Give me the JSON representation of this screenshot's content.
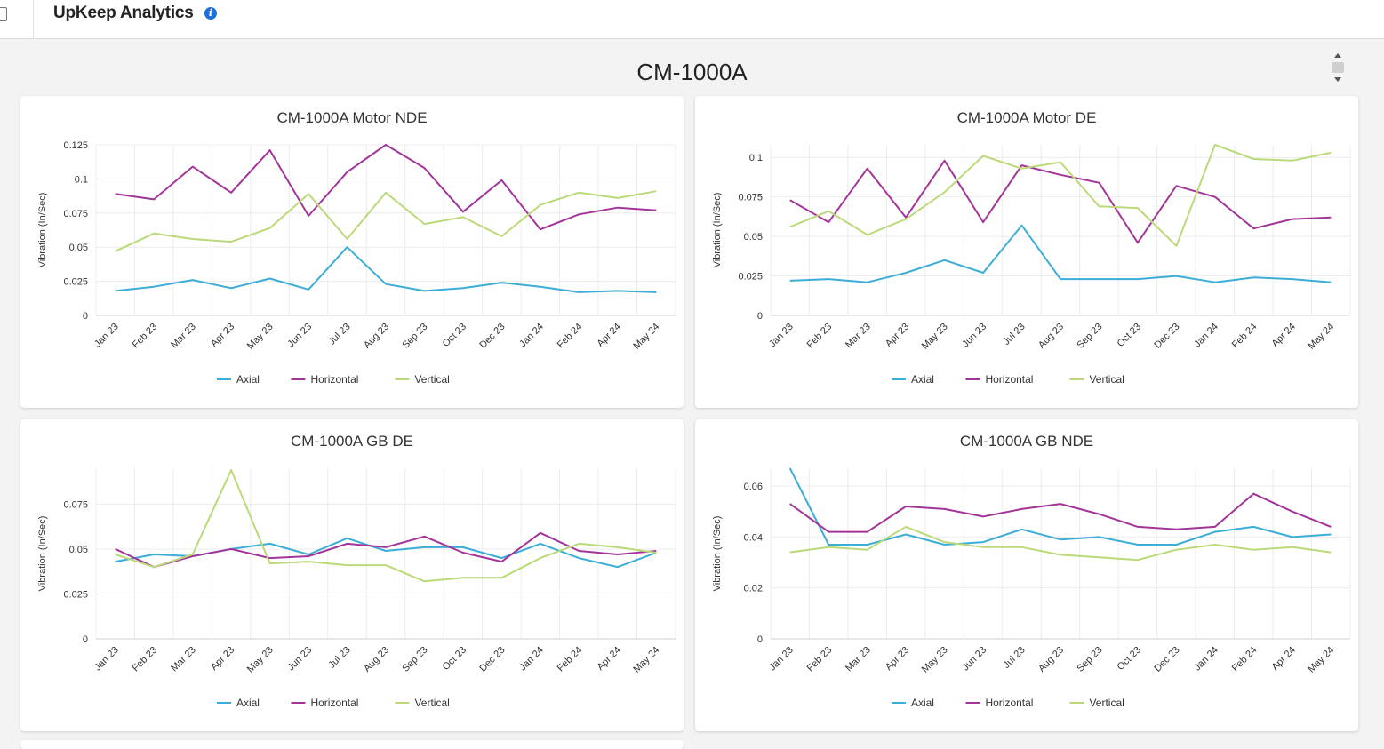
{
  "app": {
    "title": "UpKeep Analytics",
    "info_icon": "info-icon"
  },
  "dashboard": {
    "title": "CM-1000A"
  },
  "colors": {
    "Axial": "#3badd7",
    "Horizontal": "#a3359a",
    "Vertical": "#bcd97a"
  },
  "chart_data": [
    {
      "type": "line",
      "title": "CM-1000A Motor NDE",
      "xlabel": "",
      "ylabel": "Vibration (In/Sec)",
      "categories": [
        "Jan 23",
        "Feb 23",
        "Mar 23",
        "Apr 23",
        "May 23",
        "Jun 23",
        "Jul 23",
        "Aug 23",
        "Sep 23",
        "Oct 23",
        "Dec 23",
        "Jan 24",
        "Feb 24",
        "Apr 24",
        "May 24"
      ],
      "ylim": [
        0,
        0.125
      ],
      "yticks": [
        "0",
        "0.025",
        "0.05",
        "0.075",
        "0.1",
        "0.125"
      ],
      "grid": true,
      "legend": "bottom-center",
      "series": [
        {
          "name": "Axial",
          "values": [
            0.018,
            0.021,
            0.026,
            0.02,
            0.027,
            0.019,
            0.05,
            0.023,
            0.018,
            0.02,
            0.024,
            0.021,
            0.017,
            0.018,
            0.017
          ]
        },
        {
          "name": "Horizontal",
          "values": [
            0.089,
            0.085,
            0.109,
            0.09,
            0.121,
            0.073,
            0.105,
            0.125,
            0.108,
            0.076,
            0.099,
            0.063,
            0.074,
            0.079,
            0.077
          ]
        },
        {
          "name": "Vertical",
          "values": [
            0.047,
            0.06,
            0.056,
            0.054,
            0.064,
            0.089,
            0.056,
            0.09,
            0.067,
            0.072,
            0.058,
            0.081,
            0.09,
            0.086,
            0.091
          ]
        }
      ]
    },
    {
      "type": "line",
      "title": "CM-1000A Motor DE",
      "xlabel": "",
      "ylabel": "Vibration (In/Sec)",
      "categories": [
        "Jan 23",
        "Feb 23",
        "Mar 23",
        "Apr 23",
        "May 23",
        "Jun 23",
        "Jul 23",
        "Aug 23",
        "Sep 23",
        "Oct 23",
        "Dec 23",
        "Jan 24",
        "Feb 24",
        "Apr 24",
        "May 24"
      ],
      "ylim": [
        0,
        0.108
      ],
      "yticks": [
        "0",
        "0.025",
        "0.05",
        "0.075",
        "0.1"
      ],
      "grid": true,
      "legend": "bottom-center",
      "series": [
        {
          "name": "Axial",
          "values": [
            0.022,
            0.023,
            0.021,
            0.027,
            0.035,
            0.027,
            0.057,
            0.023,
            0.023,
            0.023,
            0.025,
            0.021,
            0.024,
            0.023,
            0.021
          ]
        },
        {
          "name": "Horizontal",
          "values": [
            0.073,
            0.059,
            0.093,
            0.062,
            0.098,
            0.059,
            0.095,
            0.089,
            0.084,
            0.046,
            0.082,
            0.075,
            0.055,
            0.061,
            0.062
          ]
        },
        {
          "name": "Vertical",
          "values": [
            0.056,
            0.066,
            0.051,
            0.061,
            0.078,
            0.101,
            0.093,
            0.097,
            0.069,
            0.068,
            0.044,
            0.108,
            0.099,
            0.098,
            0.103
          ]
        }
      ]
    },
    {
      "type": "line",
      "title": "CM-1000A GB DE",
      "xlabel": "",
      "ylabel": "Vibration (In/Sec)",
      "categories": [
        "Jan 23",
        "Feb 23",
        "Mar 23",
        "Apr 23",
        "May 23",
        "Jun 23",
        "Jul 23",
        "Aug 23",
        "Sep 23",
        "Oct 23",
        "Dec 23",
        "Jan 24",
        "Feb 24",
        "Apr 24",
        "May 24"
      ],
      "ylim": [
        0,
        0.095
      ],
      "yticks": [
        "0",
        "0.025",
        "0.05",
        "0.075"
      ],
      "grid": true,
      "legend": "bottom-center",
      "series": [
        {
          "name": "Axial",
          "values": [
            0.043,
            0.047,
            0.046,
            0.05,
            0.053,
            0.047,
            0.056,
            0.049,
            0.051,
            0.051,
            0.045,
            0.053,
            0.045,
            0.04,
            0.048
          ]
        },
        {
          "name": "Horizontal",
          "values": [
            0.05,
            0.04,
            0.046,
            0.05,
            0.045,
            0.046,
            0.053,
            0.051,
            0.057,
            0.048,
            0.043,
            0.059,
            0.049,
            0.047,
            0.049
          ]
        },
        {
          "name": "Vertical",
          "values": [
            0.047,
            0.04,
            0.047,
            0.094,
            0.042,
            0.043,
            0.041,
            0.041,
            0.032,
            0.034,
            0.034,
            0.045,
            0.053,
            0.051,
            0.048
          ]
        }
      ]
    },
    {
      "type": "line",
      "title": "CM-1000A GB NDE",
      "xlabel": "",
      "ylabel": "Vibration (In/Sec)",
      "categories": [
        "Jan 23",
        "Feb 23",
        "Mar 23",
        "Apr 23",
        "May 23",
        "Jun 23",
        "Jul 23",
        "Aug 23",
        "Sep 23",
        "Oct 23",
        "Dec 23",
        "Jan 24",
        "Feb 24",
        "Apr 24",
        "May 24"
      ],
      "ylim": [
        0,
        0.067
      ],
      "yticks": [
        "0",
        "0.02",
        "0.04",
        "0.06"
      ],
      "grid": true,
      "legend": "bottom-center",
      "series": [
        {
          "name": "Axial",
          "values": [
            0.067,
            0.037,
            0.037,
            0.041,
            0.037,
            0.038,
            0.043,
            0.039,
            0.04,
            0.037,
            0.037,
            0.042,
            0.044,
            0.04,
            0.041
          ]
        },
        {
          "name": "Horizontal",
          "values": [
            0.053,
            0.042,
            0.042,
            0.052,
            0.051,
            0.048,
            0.051,
            0.053,
            0.049,
            0.044,
            0.043,
            0.044,
            0.057,
            0.05,
            0.044
          ]
        },
        {
          "name": "Vertical",
          "values": [
            0.034,
            0.036,
            0.035,
            0.044,
            0.038,
            0.036,
            0.036,
            0.033,
            0.032,
            0.031,
            0.035,
            0.037,
            0.035,
            0.036,
            0.034
          ]
        }
      ]
    }
  ]
}
